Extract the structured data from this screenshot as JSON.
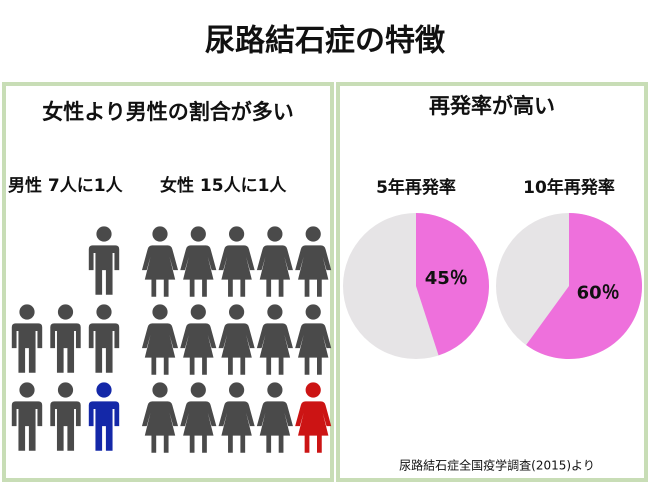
{
  "title": "尿路結石症の特徴",
  "left_panel": {
    "heading": "女性より男性の割合が多い",
    "groups": [
      {
        "label": "男性 7人に1人",
        "people": 7,
        "icon": "male",
        "color": "#4a4a4a",
        "highlight_color": "#1428a8"
      },
      {
        "label": "女性 15人に1人",
        "people": 15,
        "icon": "female",
        "color": "#4a4a4a",
        "highlight_color": "#cc1414"
      }
    ]
  },
  "right_panel": {
    "heading": "再発率が高い",
    "charts": [
      {
        "type": "pie",
        "title": "5年再発率",
        "values": [
          45
        ],
        "value_labels": [
          "45％"
        ],
        "color": "#ee70dc",
        "rest_color": "#e6e4e6"
      },
      {
        "type": "pie",
        "title": "10年再発率",
        "values": [
          60
        ],
        "value_labels": [
          "60％"
        ],
        "color": "#ee70dc",
        "rest_color": "#e6e4e6"
      }
    ]
  },
  "source": "尿路結石症全国疫学調査(2015)より"
}
